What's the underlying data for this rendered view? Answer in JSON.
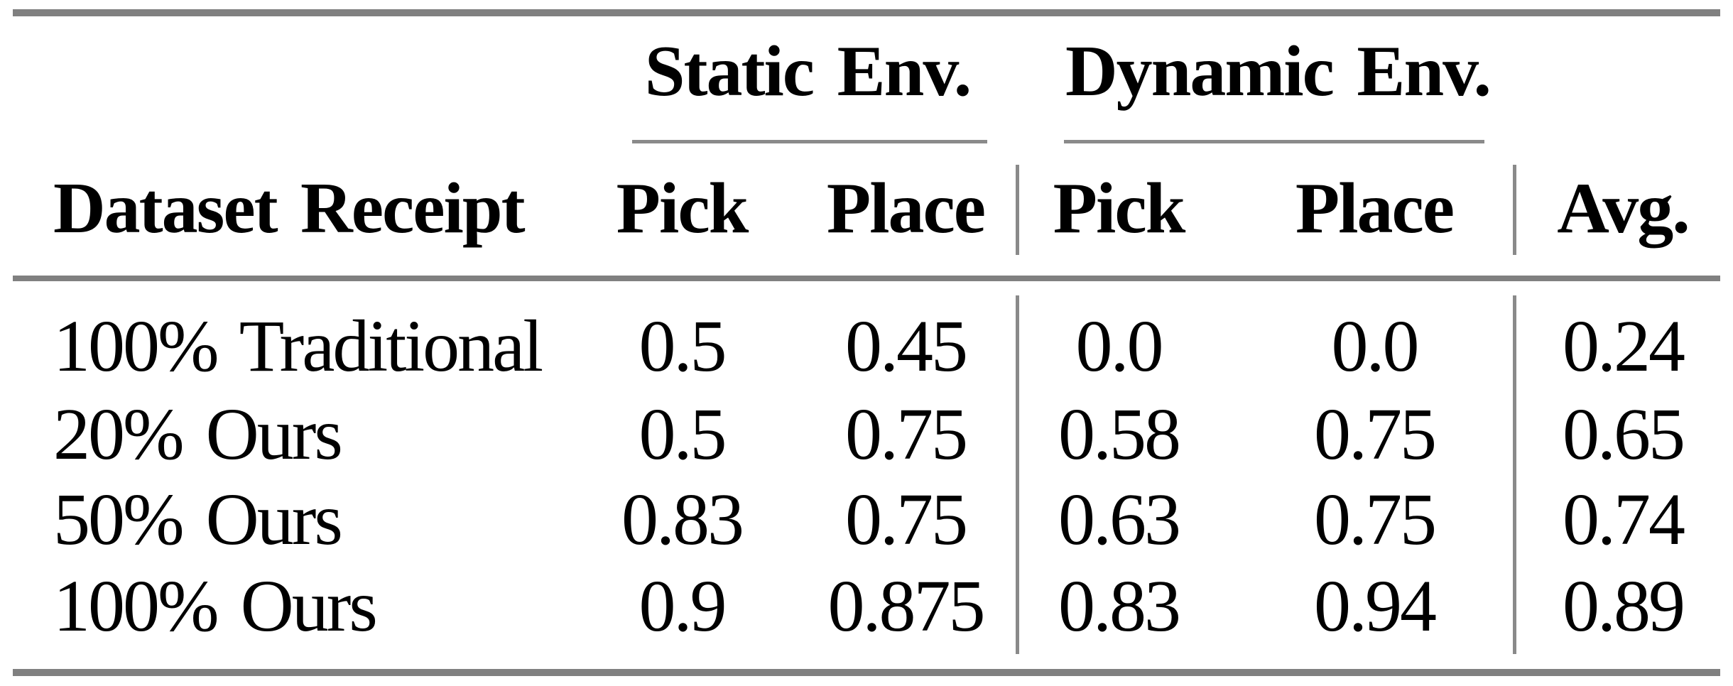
{
  "figure": {
    "background": "#ffffff",
    "text_color": "#000000",
    "rule_color_thick": "#808080",
    "rule_color_thin": "#8a8a8a"
  },
  "table": {
    "group_headers": [
      {
        "label": "Static Env."
      },
      {
        "label": "Dynamic Env."
      }
    ],
    "columns": [
      {
        "label": "Dataset Receipt"
      },
      {
        "label": "Pick"
      },
      {
        "label": "Place"
      },
      {
        "label": "Pick"
      },
      {
        "label": "Place"
      },
      {
        "label": "Avg."
      }
    ],
    "rows": [
      {
        "label": "100% Traditional",
        "values": [
          "0.5",
          "0.45",
          "0.0",
          "0.0",
          "0.24"
        ]
      },
      {
        "label": "20% Ours",
        "values": [
          "0.5",
          "0.75",
          "0.58",
          "0.75",
          "0.65"
        ]
      },
      {
        "label": "50% Ours",
        "values": [
          "0.83",
          "0.75",
          "0.63",
          "0.75",
          "0.74"
        ]
      },
      {
        "label": "100% Ours",
        "values": [
          "0.9",
          "0.875",
          "0.83",
          "0.94",
          "0.89"
        ]
      }
    ]
  }
}
